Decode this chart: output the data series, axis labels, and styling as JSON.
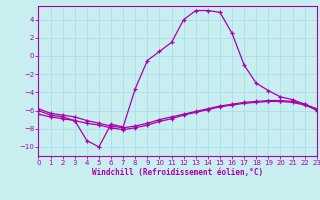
{
  "xlabel": "Windchill (Refroidissement éolien,°C)",
  "background_color": "#c8eef0",
  "grid_color": "#aaddee",
  "line_color": "#aa00aa",
  "xlim": [
    0,
    23
  ],
  "ylim": [
    -11,
    5.5
  ],
  "xticks": [
    0,
    1,
    2,
    3,
    4,
    5,
    6,
    7,
    8,
    9,
    10,
    11,
    12,
    13,
    14,
    15,
    16,
    17,
    18,
    19,
    20,
    21,
    22,
    23
  ],
  "yticks": [
    -10,
    -8,
    -6,
    -4,
    -2,
    0,
    2,
    4
  ],
  "series_big_x": [
    0,
    1,
    2,
    3,
    4,
    5,
    6,
    7,
    8,
    9,
    10,
    11,
    12,
    13,
    14,
    15,
    16,
    17,
    18,
    19,
    20,
    21,
    22,
    23
  ],
  "series_big_y": [
    -6.0,
    -6.5,
    -6.7,
    -7.1,
    -9.3,
    -10.0,
    -7.5,
    -7.8,
    -3.6,
    -0.5,
    0.5,
    1.5,
    4.0,
    5.0,
    5.0,
    4.8,
    2.5,
    -1.0,
    -3.0,
    -3.8,
    -4.5,
    -4.8,
    -5.3,
    -6.0
  ],
  "series_upper_x": [
    0,
    1,
    2,
    3,
    4,
    5,
    6,
    7,
    8,
    9,
    10,
    11,
    12,
    13,
    14,
    15,
    16,
    17,
    18,
    19,
    20,
    21,
    22,
    23
  ],
  "series_upper_y": [
    -5.8,
    -6.3,
    -6.5,
    -6.7,
    -7.1,
    -7.4,
    -7.7,
    -7.9,
    -7.7,
    -7.4,
    -7.0,
    -6.7,
    -6.4,
    -6.1,
    -5.8,
    -5.5,
    -5.3,
    -5.1,
    -5.0,
    -4.9,
    -4.9,
    -5.0,
    -5.3,
    -5.8
  ],
  "series_lower_x": [
    0,
    1,
    2,
    3,
    4,
    5,
    6,
    7,
    8,
    9,
    10,
    11,
    12,
    13,
    14,
    15,
    16,
    17,
    18,
    19,
    20,
    21,
    22,
    23
  ],
  "series_lower_y": [
    -6.4,
    -6.7,
    -6.9,
    -7.1,
    -7.4,
    -7.6,
    -7.9,
    -8.1,
    -7.9,
    -7.6,
    -7.2,
    -6.9,
    -6.5,
    -6.2,
    -5.9,
    -5.6,
    -5.4,
    -5.2,
    -5.1,
    -5.0,
    -5.0,
    -5.1,
    -5.4,
    -5.9
  ]
}
